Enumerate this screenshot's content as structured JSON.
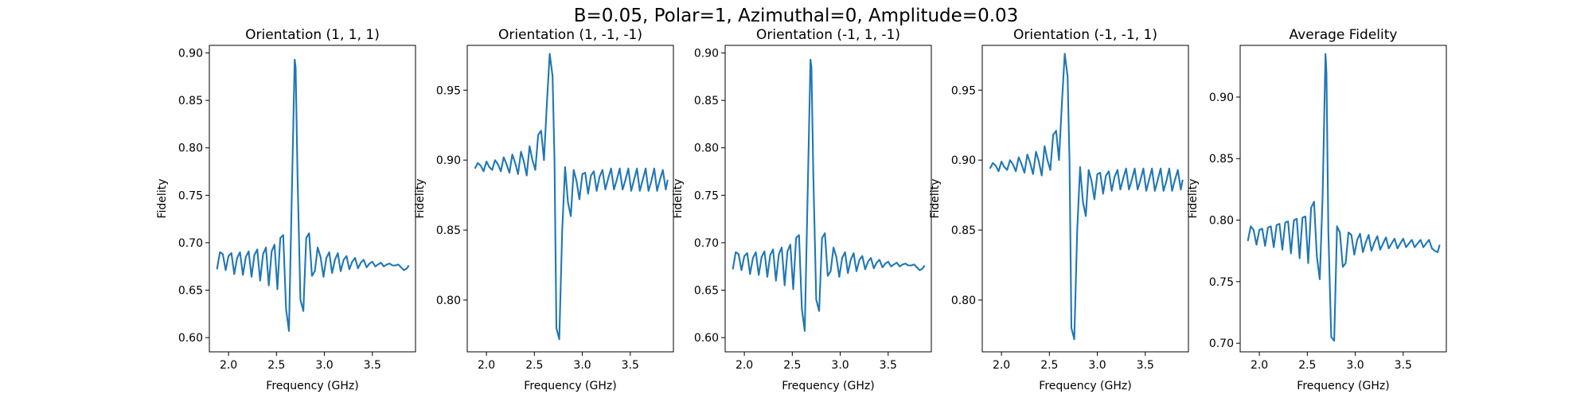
{
  "figure": {
    "suptitle": "B=0.05, Polar=1, Azimuthal=0, Amplitude=0.03",
    "line_color": "#1f77b4"
  },
  "chart_data": [
    {
      "type": "line",
      "title": "Orientation (1, 1, 1)",
      "xlabel": "Frequency (GHz)",
      "ylabel": "Fidelity",
      "xlim": [
        1.8,
        3.95
      ],
      "ylim": [
        0.585,
        0.908
      ],
      "xticks": [
        2.0,
        2.5,
        3.0,
        3.5
      ],
      "xtick_labels": [
        "2.0",
        "2.5",
        "3.0",
        "3.5"
      ],
      "yticks": [
        0.6,
        0.65,
        0.7,
        0.75,
        0.8,
        0.85,
        0.9
      ],
      "ytick_labels": [
        "0.60",
        "0.65",
        "0.70",
        "0.75",
        "0.80",
        "0.85",
        "0.90"
      ],
      "grid": false,
      "series": [
        {
          "x": [
            1.88,
            1.91,
            1.94,
            1.97,
            2.0,
            2.03,
            2.06,
            2.09,
            2.12,
            2.15,
            2.18,
            2.21,
            2.24,
            2.27,
            2.3,
            2.33,
            2.36,
            2.39,
            2.42,
            2.45,
            2.48,
            2.51,
            2.54,
            2.57,
            2.6,
            2.63,
            2.66,
            2.69,
            2.7,
            2.72,
            2.75,
            2.78,
            2.81,
            2.84,
            2.87,
            2.9,
            2.93,
            2.96,
            2.99,
            3.02,
            3.05,
            3.08,
            3.11,
            3.14,
            3.17,
            3.2,
            3.23,
            3.26,
            3.29,
            3.32,
            3.35,
            3.38,
            3.41,
            3.44,
            3.47,
            3.5,
            3.53,
            3.56,
            3.59,
            3.62,
            3.65,
            3.68,
            3.71,
            3.74,
            3.77,
            3.8,
            3.83,
            3.86,
            3.88
          ],
          "y": [
            0.672,
            0.69,
            0.688,
            0.671,
            0.686,
            0.689,
            0.667,
            0.684,
            0.69,
            0.666,
            0.685,
            0.691,
            0.664,
            0.687,
            0.693,
            0.66,
            0.688,
            0.695,
            0.655,
            0.691,
            0.698,
            0.651,
            0.705,
            0.708,
            0.63,
            0.607,
            0.75,
            0.893,
            0.885,
            0.77,
            0.64,
            0.628,
            0.705,
            0.71,
            0.665,
            0.67,
            0.695,
            0.685,
            0.664,
            0.684,
            0.69,
            0.668,
            0.682,
            0.689,
            0.67,
            0.682,
            0.686,
            0.672,
            0.68,
            0.684,
            0.673,
            0.679,
            0.682,
            0.674,
            0.678,
            0.68,
            0.675,
            0.677,
            0.679,
            0.675,
            0.677,
            0.678,
            0.676,
            0.676,
            0.677,
            0.674,
            0.671,
            0.673,
            0.676
          ]
        }
      ]
    },
    {
      "type": "line",
      "title": "Orientation (1, -1, -1)",
      "xlabel": "Frequency (GHz)",
      "ylabel": "Fidelity",
      "xlim": [
        1.8,
        3.95
      ],
      "ylim": [
        0.763,
        0.982
      ],
      "xticks": [
        2.0,
        2.5,
        3.0,
        3.5
      ],
      "xtick_labels": [
        "2.0",
        "2.5",
        "3.0",
        "3.5"
      ],
      "yticks": [
        0.8,
        0.85,
        0.9,
        0.95
      ],
      "ytick_labels": [
        "0.80",
        "0.85",
        "0.90",
        "0.95"
      ],
      "grid": false,
      "series": [
        {
          "x": [
            1.88,
            1.91,
            1.94,
            1.97,
            2.0,
            2.03,
            2.06,
            2.09,
            2.12,
            2.15,
            2.18,
            2.21,
            2.24,
            2.27,
            2.3,
            2.33,
            2.36,
            2.39,
            2.42,
            2.45,
            2.48,
            2.51,
            2.54,
            2.57,
            2.6,
            2.63,
            2.66,
            2.69,
            2.71,
            2.73,
            2.76,
            2.79,
            2.82,
            2.85,
            2.88,
            2.91,
            2.94,
            2.97,
            3.0,
            3.03,
            3.06,
            3.09,
            3.12,
            3.15,
            3.18,
            3.21,
            3.24,
            3.27,
            3.3,
            3.33,
            3.36,
            3.39,
            3.42,
            3.45,
            3.48,
            3.51,
            3.54,
            3.57,
            3.6,
            3.63,
            3.66,
            3.69,
            3.72,
            3.75,
            3.78,
            3.81,
            3.84,
            3.87,
            3.89
          ],
          "y": [
            0.894,
            0.898,
            0.896,
            0.892,
            0.899,
            0.895,
            0.893,
            0.9,
            0.897,
            0.892,
            0.902,
            0.897,
            0.891,
            0.904,
            0.898,
            0.89,
            0.906,
            0.899,
            0.889,
            0.91,
            0.9,
            0.893,
            0.918,
            0.921,
            0.9,
            0.94,
            0.976,
            0.96,
            0.9,
            0.78,
            0.772,
            0.85,
            0.895,
            0.87,
            0.86,
            0.893,
            0.885,
            0.872,
            0.89,
            0.891,
            0.876,
            0.889,
            0.892,
            0.878,
            0.888,
            0.893,
            0.879,
            0.887,
            0.894,
            0.879,
            0.886,
            0.894,
            0.879,
            0.886,
            0.894,
            0.878,
            0.886,
            0.894,
            0.878,
            0.886,
            0.894,
            0.878,
            0.885,
            0.894,
            0.878,
            0.886,
            0.893,
            0.879,
            0.886
          ]
        }
      ]
    },
    {
      "type": "line",
      "title": "Orientation (-1, 1, -1)",
      "xlabel": "Frequency (GHz)",
      "ylabel": "Fidelity",
      "xlim": [
        1.8,
        3.95
      ],
      "ylim": [
        0.585,
        0.908
      ],
      "xticks": [
        2.0,
        2.5,
        3.0,
        3.5
      ],
      "xtick_labels": [
        "2.0",
        "2.5",
        "3.0",
        "3.5"
      ],
      "yticks": [
        0.6,
        0.65,
        0.7,
        0.75,
        0.8,
        0.85,
        0.9
      ],
      "ytick_labels": [
        "0.60",
        "0.65",
        "0.70",
        "0.75",
        "0.80",
        "0.85",
        "0.90"
      ],
      "grid": false,
      "series": [
        {
          "x": [
            1.88,
            1.91,
            1.94,
            1.97,
            2.0,
            2.03,
            2.06,
            2.09,
            2.12,
            2.15,
            2.18,
            2.21,
            2.24,
            2.27,
            2.3,
            2.33,
            2.36,
            2.39,
            2.42,
            2.45,
            2.48,
            2.51,
            2.54,
            2.57,
            2.6,
            2.63,
            2.66,
            2.69,
            2.7,
            2.72,
            2.75,
            2.78,
            2.81,
            2.84,
            2.87,
            2.9,
            2.93,
            2.96,
            2.99,
            3.02,
            3.05,
            3.08,
            3.11,
            3.14,
            3.17,
            3.2,
            3.23,
            3.26,
            3.29,
            3.32,
            3.35,
            3.38,
            3.41,
            3.44,
            3.47,
            3.5,
            3.53,
            3.56,
            3.59,
            3.62,
            3.65,
            3.68,
            3.71,
            3.74,
            3.77,
            3.8,
            3.83,
            3.86,
            3.88
          ],
          "y": [
            0.672,
            0.69,
            0.688,
            0.671,
            0.686,
            0.689,
            0.667,
            0.684,
            0.69,
            0.666,
            0.685,
            0.691,
            0.664,
            0.687,
            0.693,
            0.66,
            0.688,
            0.695,
            0.655,
            0.691,
            0.698,
            0.651,
            0.705,
            0.708,
            0.63,
            0.607,
            0.75,
            0.893,
            0.885,
            0.77,
            0.64,
            0.628,
            0.705,
            0.71,
            0.665,
            0.67,
            0.695,
            0.685,
            0.664,
            0.684,
            0.69,
            0.668,
            0.682,
            0.689,
            0.67,
            0.682,
            0.686,
            0.672,
            0.68,
            0.684,
            0.673,
            0.679,
            0.682,
            0.674,
            0.678,
            0.68,
            0.675,
            0.677,
            0.679,
            0.675,
            0.677,
            0.678,
            0.676,
            0.676,
            0.677,
            0.674,
            0.671,
            0.673,
            0.676
          ]
        }
      ]
    },
    {
      "type": "line",
      "title": "Orientation (-1, -1, 1)",
      "xlabel": "Frequency (GHz)",
      "ylabel": "Fidelity",
      "xlim": [
        1.8,
        3.95
      ],
      "ylim": [
        0.763,
        0.982
      ],
      "xticks": [
        2.0,
        2.5,
        3.0,
        3.5
      ],
      "xtick_labels": [
        "2.0",
        "2.5",
        "3.0",
        "3.5"
      ],
      "yticks": [
        0.8,
        0.85,
        0.9,
        0.95
      ],
      "ytick_labels": [
        "0.80",
        "0.85",
        "0.90",
        "0.95"
      ],
      "grid": false,
      "series": [
        {
          "x": [
            1.88,
            1.91,
            1.94,
            1.97,
            2.0,
            2.03,
            2.06,
            2.09,
            2.12,
            2.15,
            2.18,
            2.21,
            2.24,
            2.27,
            2.3,
            2.33,
            2.36,
            2.39,
            2.42,
            2.45,
            2.48,
            2.51,
            2.54,
            2.57,
            2.6,
            2.63,
            2.66,
            2.69,
            2.71,
            2.73,
            2.76,
            2.79,
            2.82,
            2.85,
            2.88,
            2.91,
            2.94,
            2.97,
            3.0,
            3.03,
            3.06,
            3.09,
            3.12,
            3.15,
            3.18,
            3.21,
            3.24,
            3.27,
            3.3,
            3.33,
            3.36,
            3.39,
            3.42,
            3.45,
            3.48,
            3.51,
            3.54,
            3.57,
            3.6,
            3.63,
            3.66,
            3.69,
            3.72,
            3.75,
            3.78,
            3.81,
            3.84,
            3.87,
            3.89
          ],
          "y": [
            0.894,
            0.898,
            0.896,
            0.892,
            0.899,
            0.895,
            0.893,
            0.9,
            0.897,
            0.892,
            0.902,
            0.897,
            0.891,
            0.904,
            0.898,
            0.89,
            0.906,
            0.899,
            0.889,
            0.91,
            0.9,
            0.893,
            0.918,
            0.921,
            0.9,
            0.94,
            0.976,
            0.96,
            0.9,
            0.78,
            0.772,
            0.85,
            0.895,
            0.87,
            0.86,
            0.893,
            0.885,
            0.872,
            0.89,
            0.891,
            0.876,
            0.889,
            0.892,
            0.878,
            0.888,
            0.893,
            0.879,
            0.887,
            0.894,
            0.879,
            0.886,
            0.894,
            0.879,
            0.886,
            0.894,
            0.878,
            0.886,
            0.894,
            0.878,
            0.886,
            0.894,
            0.878,
            0.885,
            0.894,
            0.878,
            0.886,
            0.893,
            0.879,
            0.886
          ]
        }
      ]
    },
    {
      "type": "line",
      "title": "Average Fidelity",
      "xlabel": "Frequency (GHz)",
      "ylabel": "Fidelity",
      "xlim": [
        1.8,
        3.95
      ],
      "ylim": [
        0.693,
        0.942
      ],
      "xticks": [
        2.0,
        2.5,
        3.0,
        3.5
      ],
      "xtick_labels": [
        "2.0",
        "2.5",
        "3.0",
        "3.5"
      ],
      "yticks": [
        0.7,
        0.75,
        0.8,
        0.85,
        0.9
      ],
      "ytick_labels": [
        "0.70",
        "0.75",
        "0.80",
        "0.85",
        "0.90"
      ],
      "grid": false,
      "series": [
        {
          "x": [
            1.88,
            1.91,
            1.94,
            1.97,
            2.0,
            2.03,
            2.06,
            2.09,
            2.12,
            2.15,
            2.18,
            2.21,
            2.24,
            2.27,
            2.3,
            2.33,
            2.36,
            2.39,
            2.42,
            2.45,
            2.48,
            2.51,
            2.54,
            2.57,
            2.6,
            2.63,
            2.66,
            2.69,
            2.7,
            2.72,
            2.75,
            2.78,
            2.81,
            2.84,
            2.87,
            2.9,
            2.93,
            2.96,
            2.99,
            3.02,
            3.05,
            3.08,
            3.11,
            3.14,
            3.17,
            3.2,
            3.23,
            3.26,
            3.29,
            3.32,
            3.35,
            3.38,
            3.41,
            3.44,
            3.47,
            3.5,
            3.53,
            3.56,
            3.59,
            3.62,
            3.65,
            3.68,
            3.71,
            3.74,
            3.77,
            3.8,
            3.83,
            3.86,
            3.88
          ],
          "y": [
            0.783,
            0.795,
            0.792,
            0.78,
            0.792,
            0.793,
            0.779,
            0.794,
            0.795,
            0.778,
            0.796,
            0.797,
            0.776,
            0.798,
            0.799,
            0.773,
            0.8,
            0.801,
            0.769,
            0.802,
            0.803,
            0.765,
            0.81,
            0.815,
            0.77,
            0.752,
            0.82,
            0.935,
            0.92,
            0.79,
            0.705,
            0.702,
            0.795,
            0.79,
            0.762,
            0.765,
            0.79,
            0.788,
            0.772,
            0.784,
            0.789,
            0.774,
            0.782,
            0.788,
            0.775,
            0.782,
            0.787,
            0.776,
            0.781,
            0.786,
            0.777,
            0.781,
            0.785,
            0.777,
            0.781,
            0.785,
            0.778,
            0.781,
            0.784,
            0.778,
            0.781,
            0.784,
            0.778,
            0.781,
            0.784,
            0.777,
            0.775,
            0.774,
            0.78
          ]
        }
      ]
    }
  ]
}
